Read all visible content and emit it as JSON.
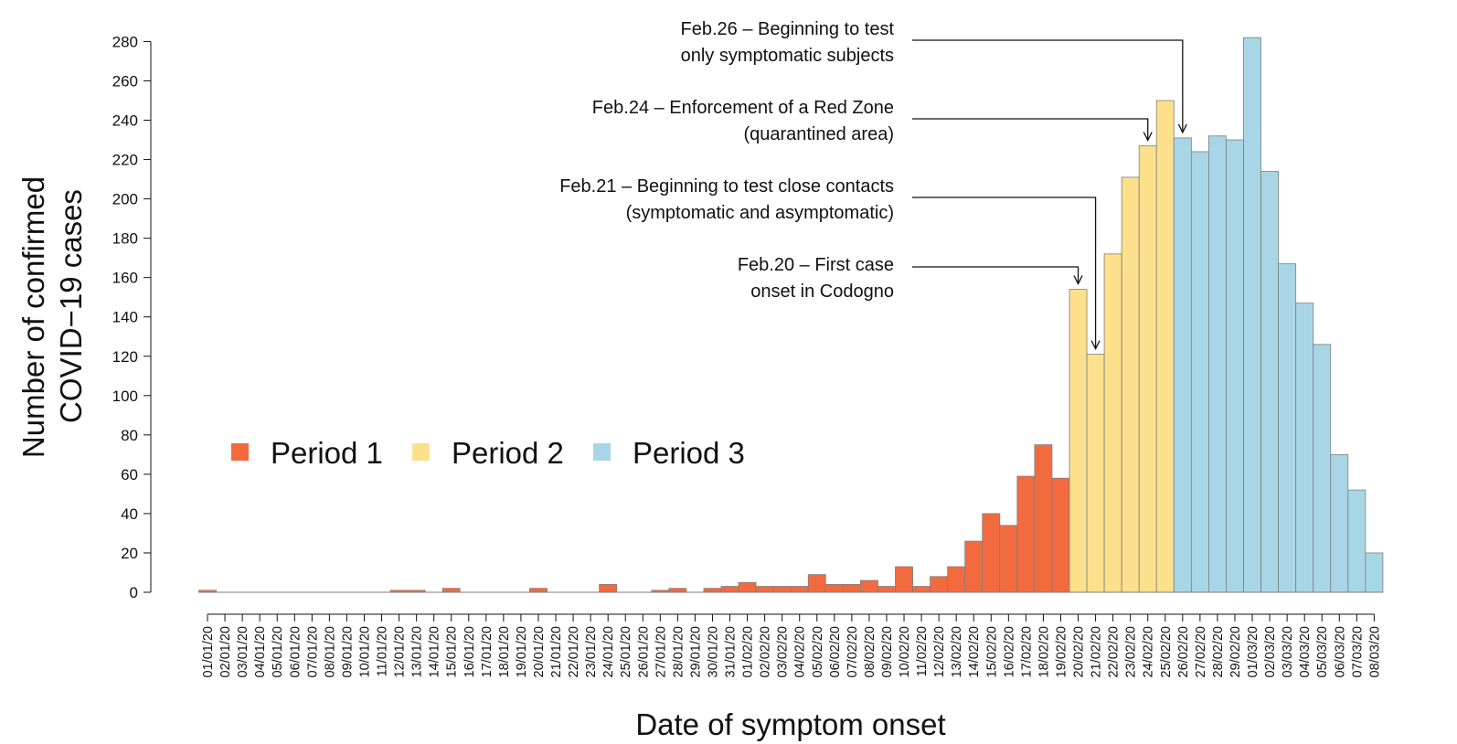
{
  "chart_data": {
    "type": "bar",
    "ylabel": [
      "Number of confirmed",
      "COVID−19 cases"
    ],
    "xlabel": "Date of symptom onset",
    "ylim": [
      0,
      280
    ],
    "yticks": [
      0,
      20,
      40,
      60,
      80,
      100,
      120,
      140,
      160,
      180,
      200,
      220,
      240,
      260,
      280
    ],
    "grid": false,
    "legend_position": "middle-left",
    "periods": [
      {
        "name": "Period 1",
        "color": "#f26b3f"
      },
      {
        "name": "Period 2",
        "color": "#fde08c"
      },
      {
        "name": "Period 3",
        "color": "#a9d6e6"
      }
    ],
    "categories": [
      "01/01/20",
      "02/01/20",
      "03/01/20",
      "04/01/20",
      "05/01/20",
      "06/01/20",
      "07/01/20",
      "08/01/20",
      "09/01/20",
      "10/01/20",
      "11/01/20",
      "12/01/20",
      "13/01/20",
      "14/01/20",
      "15/01/20",
      "16/01/20",
      "17/01/20",
      "18/01/20",
      "19/01/20",
      "20/01/20",
      "21/01/20",
      "22/01/20",
      "23/01/20",
      "24/01/20",
      "25/01/20",
      "26/01/20",
      "27/01/20",
      "28/01/20",
      "29/01/20",
      "30/01/20",
      "31/01/20",
      "01/02/20",
      "02/02/20",
      "03/02/20",
      "04/02/20",
      "05/02/20",
      "06/02/20",
      "07/02/20",
      "08/02/20",
      "09/02/20",
      "10/02/20",
      "11/02/20",
      "12/02/20",
      "13/02/20",
      "14/02/20",
      "15/02/20",
      "16/02/20",
      "17/02/20",
      "18/02/20",
      "19/02/20",
      "20/02/20",
      "21/02/20",
      "22/02/20",
      "23/02/20",
      "24/02/20",
      "25/02/20",
      "26/02/20",
      "27/02/20",
      "28/02/20",
      "29/02/20",
      "01/03/20",
      "02/03/20",
      "03/03/20",
      "04/03/20",
      "05/03/20",
      "06/03/20",
      "07/03/20",
      "08/03/20"
    ],
    "values": [
      1,
      0,
      0,
      0,
      0,
      0,
      0,
      0,
      0,
      0,
      0,
      1,
      1,
      0,
      2,
      0,
      0,
      0,
      0,
      2,
      0,
      0,
      0,
      4,
      0,
      0,
      1,
      2,
      0,
      2,
      3,
      5,
      3,
      3,
      3,
      9,
      4,
      4,
      6,
      3,
      13,
      3,
      8,
      13,
      26,
      40,
      34,
      59,
      75,
      58,
      154,
      121,
      172,
      211,
      227,
      250,
      231,
      224,
      232,
      230,
      282,
      214,
      167,
      147,
      126,
      70,
      52,
      20
    ],
    "period": [
      1,
      1,
      1,
      1,
      1,
      1,
      1,
      1,
      1,
      1,
      1,
      1,
      1,
      1,
      1,
      1,
      1,
      1,
      1,
      1,
      1,
      1,
      1,
      1,
      1,
      1,
      1,
      1,
      1,
      1,
      1,
      1,
      1,
      1,
      1,
      1,
      1,
      1,
      1,
      1,
      1,
      1,
      1,
      1,
      1,
      1,
      1,
      1,
      1,
      1,
      2,
      2,
      2,
      2,
      2,
      2,
      3,
      3,
      3,
      3,
      3,
      3,
      3,
      3,
      3,
      3,
      3,
      3
    ],
    "annotations": [
      {
        "lines": [
          "Feb.26 – Beginning to test",
          "only symptomatic subjects"
        ],
        "target": "26/02/20",
        "points_to_value": 231
      },
      {
        "lines": [
          "Feb.24 – Enforcement of a Red Zone",
          "(quarantined area)"
        ],
        "target": "24/02/20",
        "points_to_value": 227
      },
      {
        "lines": [
          "Feb.21 – Beginning to test close contacts",
          "(symptomatic and asymptomatic)"
        ],
        "target": "21/02/20",
        "points_to_value": 121
      },
      {
        "lines": [
          "Feb.20 – First case",
          "onset in Codogno"
        ],
        "target": "20/02/20",
        "points_to_value": 154
      }
    ]
  }
}
